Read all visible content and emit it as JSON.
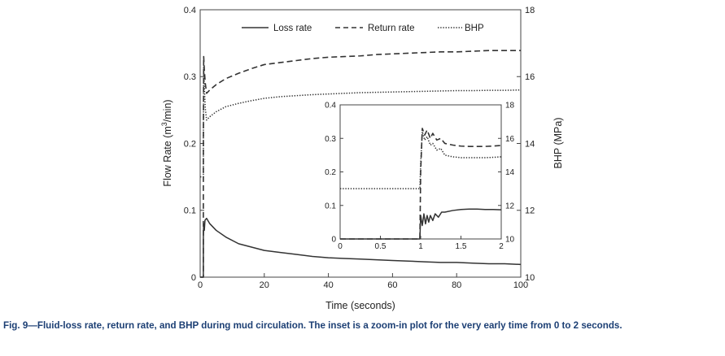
{
  "chart_data": {
    "type": "line",
    "xlabel": "Time (seconds)",
    "ylabel_left": "Flow Rate (m³/min)",
    "ylabel_left_parts": {
      "pre": "Flow Rate (m",
      "sup": "3",
      "post": "/min)"
    },
    "ylabel_right": "BHP (MPa)",
    "xlim": [
      0,
      100
    ],
    "ylim_left": [
      0,
      0.4
    ],
    "ylim_right": [
      10,
      18
    ],
    "xticks": [
      0,
      20,
      40,
      60,
      80,
      100
    ],
    "xtick_labels": [
      "0",
      "20",
      "40",
      "60",
      "80",
      "100"
    ],
    "yticks_left": [
      0,
      0.1,
      0.2,
      0.3,
      0.4
    ],
    "ytick_labels_left": [
      "0",
      "0.1",
      "0.2",
      "0.3",
      "0.4"
    ],
    "yticks_right": [
      10,
      12,
      14,
      16,
      18
    ],
    "ytick_labels_right": [
      "10",
      "12",
      "14",
      "16",
      "18"
    ],
    "legend": [
      "Loss rate",
      "Return rate",
      "BHP"
    ],
    "legend_position": "top",
    "grid": false,
    "series": [
      {
        "name": "Loss rate",
        "axis": "left",
        "style": "solid",
        "x": [
          0,
          0.99,
          1.0,
          1.1,
          1.3,
          1.5,
          2,
          3,
          5,
          8,
          12,
          16,
          20,
          25,
          30,
          35,
          40,
          45,
          50,
          55,
          60,
          65,
          70,
          75,
          80,
          85,
          90,
          95,
          100
        ],
        "y": [
          0,
          0,
          0.06,
          0.08,
          0.07,
          0.085,
          0.088,
          0.08,
          0.07,
          0.06,
          0.05,
          0.045,
          0.04,
          0.037,
          0.034,
          0.031,
          0.029,
          0.028,
          0.027,
          0.026,
          0.025,
          0.024,
          0.023,
          0.022,
          0.022,
          0.021,
          0.02,
          0.02,
          0.019
        ]
      },
      {
        "name": "Return rate",
        "axis": "left",
        "style": "dashed",
        "x": [
          0,
          0.99,
          1.0,
          1.1,
          1.3,
          1.6,
          2,
          3,
          5,
          8,
          12,
          16,
          20,
          25,
          30,
          35,
          40,
          45,
          50,
          55,
          60,
          65,
          70,
          75,
          80,
          85,
          90,
          95,
          100
        ],
        "y": [
          0,
          0,
          0.2,
          0.33,
          0.31,
          0.29,
          0.275,
          0.28,
          0.288,
          0.297,
          0.305,
          0.312,
          0.318,
          0.321,
          0.324,
          0.327,
          0.329,
          0.33,
          0.331,
          0.333,
          0.334,
          0.335,
          0.336,
          0.337,
          0.337,
          0.338,
          0.339,
          0.339,
          0.339
        ]
      },
      {
        "name": "BHP",
        "axis": "right",
        "style": "dotted",
        "x": [
          0,
          0.99,
          1.0,
          1.1,
          1.3,
          1.6,
          2,
          3,
          5,
          8,
          12,
          16,
          20,
          25,
          30,
          35,
          40,
          45,
          50,
          55,
          60,
          65,
          70,
          75,
          80,
          85,
          90,
          95,
          100
        ],
        "y": [
          13.0,
          13.0,
          14.2,
          16.3,
          15.7,
          15.05,
          14.7,
          14.8,
          14.95,
          15.1,
          15.2,
          15.28,
          15.35,
          15.4,
          15.43,
          15.46,
          15.48,
          15.5,
          15.52,
          15.53,
          15.54,
          15.55,
          15.56,
          15.57,
          15.58,
          15.58,
          15.59,
          15.59,
          15.6
        ]
      }
    ],
    "inset": {
      "xlim": [
        0,
        2
      ],
      "ylim_left": [
        0,
        0.4
      ],
      "ylim_right": [
        10,
        18
      ],
      "xticks": [
        0,
        0.5,
        1,
        1.5,
        2
      ],
      "xtick_labels": [
        "0",
        "0.5",
        "1",
        "1.5",
        "2"
      ],
      "yticks_left": [
        0,
        0.1,
        0.2,
        0.3,
        0.4
      ],
      "ytick_labels_left": [
        "0",
        "0.1",
        "0.2",
        "0.3",
        "0.4"
      ],
      "yticks_right": [
        10,
        12,
        14,
        16,
        18
      ],
      "ytick_labels_right": [
        "10",
        "12",
        "14",
        "16",
        "18"
      ],
      "series": [
        {
          "name": "Loss rate",
          "axis": "left",
          "style": "solid",
          "x": [
            0,
            0.99,
            1.0,
            1.02,
            1.04,
            1.06,
            1.08,
            1.1,
            1.12,
            1.15,
            1.18,
            1.22,
            1.26,
            1.3,
            1.4,
            1.5,
            1.6,
            1.7,
            1.8,
            1.9,
            2.0
          ],
          "y": [
            0,
            0,
            0.07,
            0.04,
            0.075,
            0.045,
            0.07,
            0.05,
            0.07,
            0.055,
            0.075,
            0.065,
            0.08,
            0.08,
            0.085,
            0.088,
            0.089,
            0.089,
            0.088,
            0.088,
            0.087
          ]
        },
        {
          "name": "Return rate",
          "axis": "left",
          "style": "dashed",
          "x": [
            0,
            0.99,
            1.0,
            1.02,
            1.05,
            1.08,
            1.12,
            1.15,
            1.2,
            1.25,
            1.3,
            1.4,
            1.5,
            1.6,
            1.7,
            1.8,
            1.9,
            2.0
          ],
          "y": [
            0,
            0,
            0.2,
            0.33,
            0.31,
            0.325,
            0.3,
            0.315,
            0.295,
            0.3,
            0.285,
            0.28,
            0.277,
            0.276,
            0.276,
            0.276,
            0.277,
            0.279
          ]
        },
        {
          "name": "BHP",
          "axis": "right",
          "style": "dotted",
          "x": [
            0,
            0.5,
            0.99,
            1.0,
            1.02,
            1.05,
            1.08,
            1.12,
            1.15,
            1.2,
            1.25,
            1.3,
            1.4,
            1.5,
            1.6,
            1.7,
            1.8,
            1.9,
            2.0
          ],
          "y": [
            13.0,
            13.0,
            13.0,
            14.5,
            16.4,
            15.9,
            16.1,
            15.6,
            15.7,
            15.3,
            15.4,
            15.0,
            14.9,
            14.85,
            14.85,
            14.85,
            14.85,
            14.87,
            14.9
          ]
        }
      ]
    }
  },
  "caption": "Fig. 9—Fluid-loss rate, return rate, and BHP during mud circulation. The inset is a zoom-in plot for the very early time from 0 to 2 seconds."
}
